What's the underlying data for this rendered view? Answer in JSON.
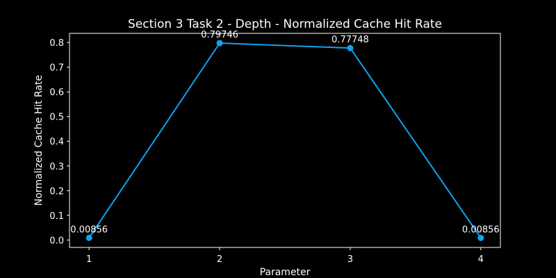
{
  "chart_data": {
    "type": "line",
    "title": "Section 3 Task 2 - Depth - Normalized Cache Hit Rate",
    "xlabel": "Parameter",
    "ylabel": "Normalized Cache Hit Rate",
    "x": [
      1,
      2,
      3,
      4
    ],
    "y": [
      0.00856,
      0.79746,
      0.77748,
      0.00856
    ],
    "point_labels": [
      "0.00856",
      "0.79746",
      "0.77748",
      "0.00856"
    ],
    "x_ticks": [
      1,
      2,
      3,
      4
    ],
    "y_ticks": [
      0.0,
      0.1,
      0.2,
      0.3,
      0.4,
      0.5,
      0.6,
      0.7,
      0.8
    ],
    "y_tick_labels": [
      "0.0",
      "0.1",
      "0.2",
      "0.3",
      "0.4",
      "0.5",
      "0.6",
      "0.7",
      "0.8"
    ],
    "xlim": [
      0.85,
      4.15
    ],
    "ylim": [
      -0.03,
      0.837
    ],
    "grid": false,
    "legend": "none",
    "colors": {
      "background": "#000000",
      "axes": "#ffffff",
      "text": "#ffffff",
      "series": "#0fa3ef"
    }
  }
}
